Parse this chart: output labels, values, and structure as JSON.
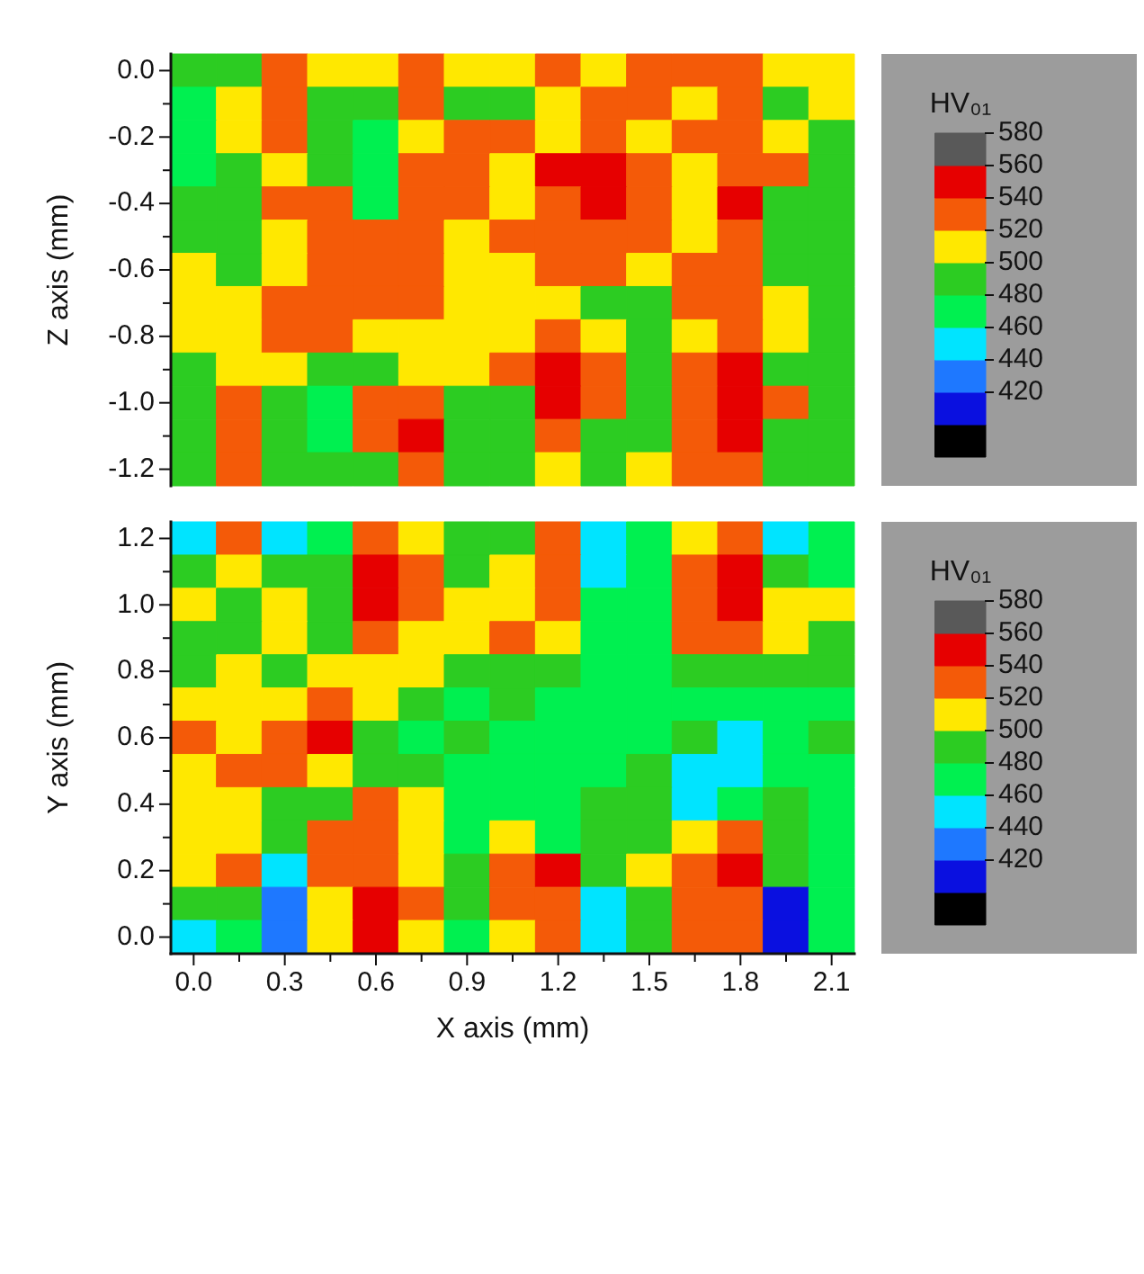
{
  "chart_data": [
    {
      "type": "heatmap",
      "ylabel": "Z axis (mm)",
      "tick_labels": "y",
      "clim": [
        380,
        580
      ],
      "cticks": [
        420,
        440,
        460,
        480,
        500,
        520,
        540,
        560,
        580
      ],
      "clabel": "HV₀₁",
      "categories": [
        "0.0",
        null,
        "0.3",
        null,
        "0.6",
        null,
        "0.9",
        null,
        "1.2",
        null,
        "1.5",
        null,
        "1.8",
        null,
        "2.1"
      ],
      "y_categories": [
        "0.0",
        null,
        "-0.2",
        null,
        "-0.4",
        null,
        "-0.6",
        null,
        "-0.8",
        null,
        "-1.0",
        null,
        "-1.2"
      ],
      "cells": [
        [
          480,
          490,
          530,
          510,
          510,
          530,
          510,
          510,
          530,
          510,
          530,
          530,
          530,
          510,
          510
        ],
        [
          470,
          510,
          530,
          490,
          490,
          530,
          490,
          490,
          510,
          530,
          530,
          510,
          530,
          490,
          510
        ],
        [
          470,
          510,
          530,
          490,
          470,
          510,
          530,
          530,
          510,
          530,
          510,
          530,
          530,
          510,
          490
        ],
        [
          470,
          490,
          510,
          490,
          470,
          530,
          530,
          510,
          550,
          550,
          530,
          510,
          530,
          530,
          490
        ],
        [
          490,
          490,
          530,
          530,
          470,
          530,
          530,
          510,
          530,
          550,
          530,
          510,
          550,
          490,
          490
        ],
        [
          490,
          490,
          510,
          530,
          530,
          530,
          510,
          530,
          530,
          530,
          530,
          510,
          530,
          490,
          490
        ],
        [
          510,
          490,
          510,
          530,
          530,
          530,
          510,
          510,
          530,
          530,
          510,
          530,
          530,
          490,
          490
        ],
        [
          510,
          510,
          530,
          530,
          530,
          530,
          510,
          510,
          510,
          490,
          490,
          530,
          530,
          510,
          490
        ],
        [
          510,
          510,
          530,
          530,
          510,
          510,
          510,
          510,
          530,
          510,
          490,
          510,
          530,
          510,
          490
        ],
        [
          490,
          510,
          510,
          490,
          490,
          510,
          510,
          530,
          550,
          530,
          490,
          530,
          550,
          490,
          490
        ],
        [
          490,
          530,
          490,
          470,
          530,
          530,
          490,
          490,
          550,
          530,
          490,
          530,
          550,
          530,
          490
        ],
        [
          490,
          530,
          490,
          470,
          530,
          550,
          490,
          490,
          530,
          490,
          490,
          530,
          550,
          490,
          490
        ],
        [
          490,
          530,
          490,
          490,
          490,
          530,
          490,
          490,
          510,
          490,
          510,
          530,
          530,
          490,
          490
        ]
      ]
    },
    {
      "type": "heatmap",
      "xlabel": "X axis (mm)",
      "ylabel": "Y axis (mm)",
      "clim": [
        380,
        580
      ],
      "cticks": [
        420,
        440,
        460,
        480,
        500,
        520,
        540,
        560,
        580
      ],
      "clabel": "HV₀₁",
      "categories": [
        "0.0",
        null,
        "0.3",
        null,
        "0.6",
        null,
        "0.9",
        null,
        "1.2",
        null,
        "1.5",
        null,
        "1.8",
        null,
        "2.1"
      ],
      "y_categories": [
        "1.2",
        null,
        "1.0",
        null,
        "0.8",
        null,
        "0.6",
        null,
        "0.4",
        null,
        "0.2",
        null,
        "0.0"
      ],
      "cells": [
        [
          450,
          530,
          450,
          470,
          530,
          510,
          490,
          480,
          530,
          450,
          470,
          510,
          530,
          450,
          460
        ],
        [
          490,
          510,
          480,
          490,
          550,
          530,
          480,
          510,
          530,
          450,
          470,
          530,
          550,
          490,
          460
        ],
        [
          510,
          490,
          510,
          490,
          550,
          530,
          510,
          510,
          530,
          460,
          470,
          530,
          550,
          510,
          510
        ],
        [
          490,
          490,
          510,
          490,
          530,
          510,
          510,
          530,
          510,
          470,
          470,
          530,
          530,
          510,
          480
        ],
        [
          490,
          510,
          490,
          510,
          510,
          510,
          490,
          490,
          490,
          470,
          470,
          490,
          480,
          480,
          480
        ],
        [
          510,
          510,
          510,
          530,
          510,
          490,
          470,
          480,
          470,
          470,
          470,
          470,
          470,
          460,
          470
        ],
        [
          530,
          510,
          530,
          550,
          490,
          470,
          480,
          470,
          470,
          470,
          470,
          480,
          450,
          470,
          480
        ],
        [
          510,
          530,
          530,
          510,
          490,
          490,
          470,
          470,
          470,
          470,
          480,
          450,
          450,
          470,
          460
        ],
        [
          510,
          510,
          490,
          480,
          530,
          510,
          470,
          470,
          470,
          480,
          480,
          450,
          470,
          480,
          470
        ],
        [
          510,
          510,
          490,
          530,
          530,
          510,
          470,
          510,
          470,
          480,
          480,
          510,
          530,
          480,
          470
        ],
        [
          510,
          530,
          450,
          530,
          530,
          510,
          480,
          530,
          550,
          480,
          510,
          530,
          550,
          480,
          460
        ],
        [
          490,
          480,
          430,
          510,
          550,
          530,
          480,
          530,
          530,
          450,
          480,
          530,
          530,
          410,
          460
        ],
        [
          450,
          460,
          430,
          510,
          550,
          510,
          460,
          510,
          530,
          450,
          480,
          530,
          530,
          410,
          460
        ]
      ]
    }
  ]
}
